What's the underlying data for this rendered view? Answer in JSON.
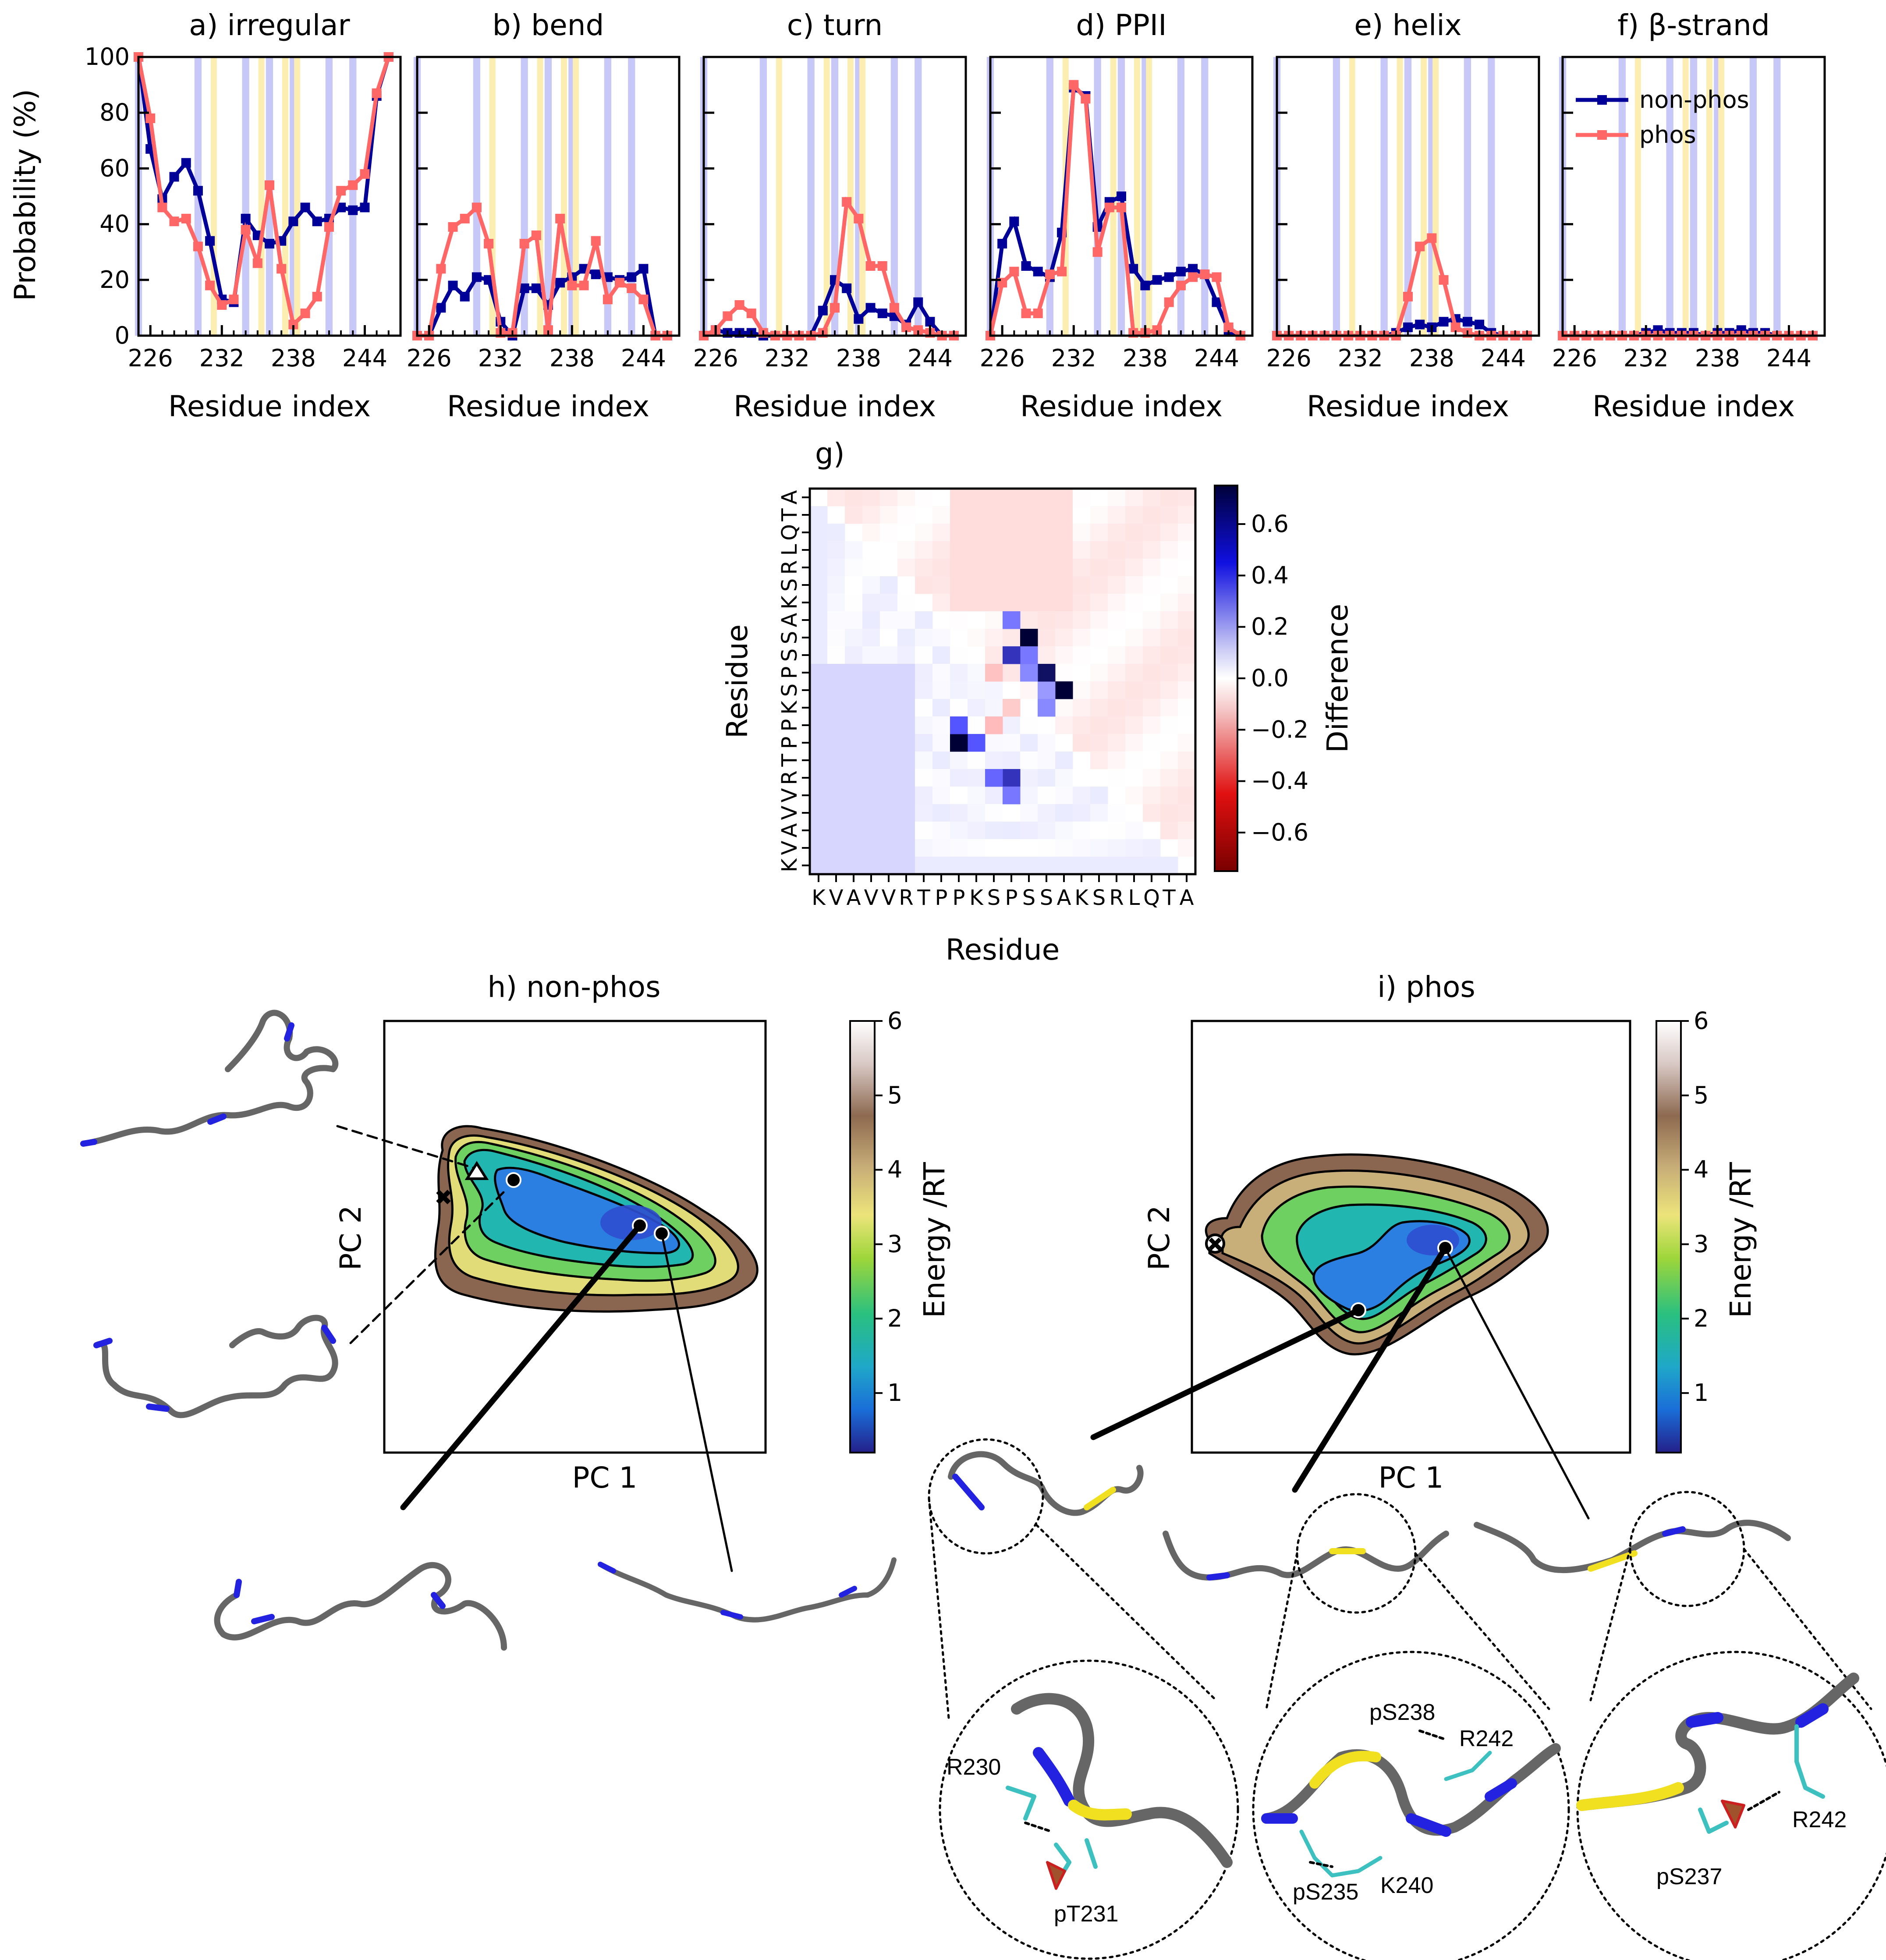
{
  "chart_data": [
    {
      "type": "line",
      "panel_id": "a",
      "title": "a) irregular",
      "xlabel": "Residue index",
      "ylabel": "Probability (%)",
      "xlim": [
        225,
        247
      ],
      "ylim": [
        0,
        100
      ],
      "xticks": [
        226,
        232,
        238,
        244
      ],
      "yticks": [
        0,
        20,
        40,
        60,
        80,
        100
      ],
      "x": [
        225,
        226,
        227,
        228,
        229,
        230,
        231,
        232,
        233,
        234,
        235,
        236,
        237,
        238,
        239,
        240,
        241,
        242,
        243,
        244,
        245,
        246
      ],
      "series": [
        {
          "name": "non-phos",
          "values": [
            100,
            67,
            49,
            57,
            62,
            52,
            34,
            13,
            12,
            42,
            36,
            33,
            34,
            41,
            46,
            41,
            42,
            46,
            45,
            46,
            86,
            100
          ]
        },
        {
          "name": "phos",
          "values": [
            100,
            78,
            46,
            41,
            42,
            32,
            18,
            11,
            13,
            38,
            26,
            54,
            24,
            4,
            8,
            14,
            39,
            52,
            54,
            58,
            87,
            100
          ]
        }
      ],
      "blue_bands": [
        225,
        230,
        234,
        236,
        238,
        241,
        243
      ],
      "yellow_bands": [
        231,
        235,
        237,
        238
      ]
    },
    {
      "type": "line",
      "panel_id": "b",
      "title": "b) bend",
      "xlabel": "Residue index",
      "xlim": [
        225,
        247
      ],
      "ylim": [
        0,
        100
      ],
      "xticks": [
        226,
        232,
        238,
        244
      ],
      "x": [
        225,
        226,
        227,
        228,
        229,
        230,
        231,
        232,
        233,
        234,
        235,
        236,
        237,
        238,
        239,
        240,
        241,
        242,
        243,
        244,
        245,
        246
      ],
      "series": [
        {
          "name": "non-phos",
          "values": [
            0,
            0,
            10,
            18,
            14,
            21,
            20,
            5,
            0,
            17,
            17,
            11,
            19,
            21,
            24,
            22,
            21,
            20,
            21,
            24,
            0,
            0
          ]
        },
        {
          "name": "phos",
          "values": [
            0,
            0,
            24,
            39,
            42,
            46,
            33,
            1,
            1,
            33,
            36,
            2,
            42,
            18,
            18,
            34,
            13,
            19,
            17,
            13,
            0,
            0
          ]
        }
      ],
      "blue_bands": [
        225,
        230,
        234,
        236,
        238,
        241,
        243
      ],
      "yellow_bands": [
        231,
        235,
        237,
        238
      ]
    },
    {
      "type": "line",
      "panel_id": "c",
      "title": "c) turn",
      "xlabel": "Residue index",
      "xlim": [
        225,
        247
      ],
      "ylim": [
        0,
        100
      ],
      "xticks": [
        226,
        232,
        238,
        244
      ],
      "x": [
        225,
        226,
        227,
        228,
        229,
        230,
        231,
        232,
        233,
        234,
        235,
        236,
        237,
        238,
        239,
        240,
        241,
        242,
        243,
        244,
        245,
        246
      ],
      "series": [
        {
          "name": "non-phos",
          "values": [
            0,
            2,
            1,
            1,
            1,
            0,
            0,
            0,
            0,
            0,
            9,
            20,
            17,
            6,
            10,
            8,
            7,
            4,
            12,
            5,
            0,
            0
          ]
        },
        {
          "name": "phos",
          "values": [
            0,
            2,
            7,
            11,
            8,
            1,
            0,
            0,
            0,
            0,
            1,
            10,
            48,
            42,
            25,
            25,
            10,
            3,
            2,
            1,
            0,
            0
          ]
        }
      ],
      "blue_bands": [
        225,
        230,
        234,
        236,
        238,
        241,
        243
      ],
      "yellow_bands": [
        231,
        235,
        237,
        238
      ]
    },
    {
      "type": "line",
      "panel_id": "d",
      "title": "d) PPII",
      "xlabel": "Residue index",
      "xlim": [
        225,
        247
      ],
      "ylim": [
        0,
        100
      ],
      "xticks": [
        226,
        232,
        238,
        244
      ],
      "x": [
        225,
        226,
        227,
        228,
        229,
        230,
        231,
        232,
        233,
        234,
        235,
        236,
        237,
        238,
        239,
        240,
        241,
        242,
        243,
        244,
        245,
        246
      ],
      "series": [
        {
          "name": "non-phos",
          "values": [
            0,
            33,
            41,
            25,
            23,
            21,
            37,
            89,
            86,
            39,
            48,
            50,
            24,
            18,
            20,
            21,
            23,
            24,
            22,
            12,
            2,
            0
          ]
        },
        {
          "name": "phos",
          "values": [
            0,
            19,
            23,
            8,
            8,
            22,
            23,
            90,
            85,
            30,
            46,
            46,
            1,
            1,
            2,
            12,
            18,
            21,
            22,
            21,
            3,
            0
          ]
        }
      ],
      "blue_bands": [
        225,
        230,
        234,
        236,
        238,
        241,
        243
      ],
      "yellow_bands": [
        231,
        235,
        237,
        238
      ]
    },
    {
      "type": "line",
      "panel_id": "e",
      "title": "e) helix",
      "xlabel": "Residue index",
      "xlim": [
        225,
        247
      ],
      "ylim": [
        0,
        100
      ],
      "xticks": [
        226,
        232,
        238,
        244
      ],
      "x": [
        225,
        226,
        227,
        228,
        229,
        230,
        231,
        232,
        233,
        234,
        235,
        236,
        237,
        238,
        239,
        240,
        241,
        242,
        243,
        244,
        245,
        246
      ],
      "series": [
        {
          "name": "non-phos",
          "values": [
            0,
            0,
            0,
            0,
            0,
            0,
            0,
            0,
            0,
            0,
            1,
            3,
            4,
            3,
            5,
            6,
            5,
            4,
            1,
            0,
            0,
            0
          ]
        },
        {
          "name": "phos",
          "values": [
            0,
            0,
            0,
            0,
            0,
            0,
            0,
            0,
            0,
            0,
            0,
            14,
            32,
            35,
            20,
            3,
            1,
            0,
            0,
            0,
            0,
            0
          ]
        }
      ],
      "blue_bands": [
        225,
        230,
        234,
        236,
        238,
        241,
        243
      ],
      "yellow_bands": [
        231,
        235,
        237,
        238
      ]
    },
    {
      "type": "line",
      "panel_id": "f",
      "title": "f) β-strand",
      "xlabel": "Residue index",
      "xlim": [
        225,
        247
      ],
      "ylim": [
        0,
        100
      ],
      "xticks": [
        226,
        232,
        238,
        244
      ],
      "x": [
        225,
        226,
        227,
        228,
        229,
        230,
        231,
        232,
        233,
        234,
        235,
        236,
        237,
        238,
        239,
        240,
        241,
        242,
        243,
        244,
        245,
        246
      ],
      "series": [
        {
          "name": "non-phos",
          "values": [
            0,
            0,
            0,
            0,
            0,
            0,
            0,
            1,
            2,
            1,
            1,
            1,
            0,
            1,
            1,
            2,
            1,
            1,
            0,
            0,
            0,
            0
          ]
        },
        {
          "name": "phos",
          "values": [
            0,
            0,
            0,
            0,
            0,
            0,
            0,
            0,
            0,
            0,
            0,
            0,
            0,
            0,
            0,
            0,
            0,
            0,
            0,
            0,
            0,
            0
          ]
        }
      ],
      "legend": {
        "entries": [
          "non-phos",
          "phos"
        ],
        "location": "upper-right"
      },
      "blue_bands": [
        225,
        230,
        234,
        236,
        238,
        241,
        243
      ],
      "yellow_bands": [
        231,
        235,
        237,
        238
      ]
    },
    {
      "type": "heatmap",
      "panel_id": "g",
      "title": "g)",
      "xlabel": "Residue",
      "ylabel": "Residue",
      "sequence": "KVAVVRTPPKSPSSAKSRLQTA",
      "colorbar_label": "Difference",
      "colorbar_ticks": [
        "−0.6",
        "−0.4",
        "−0.2",
        "0.0",
        "0.2",
        "0.4",
        "0.6"
      ],
      "colorbar_range": [
        -0.75,
        0.75
      ],
      "strong_cells": [
        {
          "row": 16,
          "col": 11,
          "v": 0.6
        },
        {
          "row": 16,
          "col": 10,
          "v": 0.45
        },
        {
          "row": 17,
          "col": 11,
          "v": 0.4
        },
        {
          "row": 14,
          "col": 9,
          "v": 0.5
        },
        {
          "row": 14,
          "col": 8,
          "v": 0.75
        },
        {
          "row": 13,
          "col": 8,
          "v": 0.5
        },
        {
          "row": 11,
          "col": 14,
          "v": 0.75
        },
        {
          "row": 11,
          "col": 13,
          "v": 0.3
        },
        {
          "row": 10,
          "col": 13,
          "v": 0.7
        },
        {
          "row": 10,
          "col": 12,
          "v": 0.35
        },
        {
          "row": 8,
          "col": 12,
          "v": 0.75
        },
        {
          "row": 9,
          "col": 12,
          "v": 0.4
        },
        {
          "row": 12,
          "col": 13,
          "v": 0.35
        },
        {
          "row": 9,
          "col": 11,
          "v": 0.6
        },
        {
          "row": 7,
          "col": 11,
          "v": 0.4
        },
        {
          "row": 12,
          "col": 11,
          "v": -0.15
        },
        {
          "row": 13,
          "col": 10,
          "v": -0.2
        },
        {
          "row": 10,
          "col": 10,
          "v": -0.18
        }
      ]
    },
    {
      "type": "heatmap",
      "panel_id": "h",
      "title": "h) non-phos",
      "xlabel": "PC 1",
      "ylabel": "PC 2",
      "colorbar_label": "Energy /RT",
      "colorbar_ticks": [
        "1",
        "2",
        "3",
        "4",
        "5",
        "6"
      ],
      "markers": [
        "triangle",
        "x",
        "circle",
        "circle",
        "circle"
      ]
    },
    {
      "type": "heatmap",
      "panel_id": "i",
      "title": "i) phos",
      "xlabel": "PC 1",
      "ylabel": "PC 2",
      "colorbar_label": "Energy /RT",
      "colorbar_ticks": [
        "1",
        "2",
        "3",
        "4",
        "5",
        "6"
      ],
      "markers": [
        "x-circle",
        "circle",
        "circle"
      ]
    }
  ],
  "annotations": {
    "residue_labels": [
      "R230",
      "pT231",
      "pS238",
      "R242",
      "pS235",
      "K240",
      "R242",
      "pS237"
    ]
  }
}
